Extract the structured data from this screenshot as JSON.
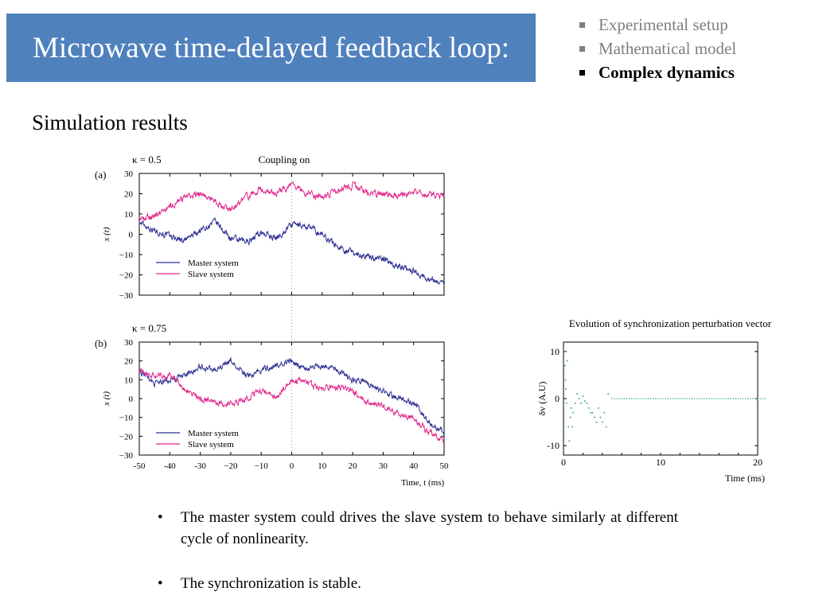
{
  "slide": {
    "title": "Microwave time-delayed feedback loop:",
    "subtitle": "Simulation results",
    "nav": [
      {
        "label": "Experimental setup",
        "active": false
      },
      {
        "label": "Mathematical model",
        "active": false
      },
      {
        "label": "Complex dynamics",
        "active": true
      }
    ],
    "bullets": [
      "The master system could drives the slave system to behave similarly at different cycle of nonlinearity.",
      "The synchronization is stable."
    ],
    "bullet_glyph": "•",
    "colors": {
      "title_bg": "#4f81bd",
      "master": "#2e3192",
      "slave": "#e0268a",
      "perturbation": "#3cb371"
    }
  },
  "chart_data": [
    {
      "id": "a",
      "type": "line",
      "panel_label": "(a)",
      "annotation_left": "κ = 0.5",
      "annotation_center": "Coupling on",
      "ylabel": "x (t)",
      "ylim": [
        -30,
        30
      ],
      "xlim": [
        -50,
        50
      ],
      "yticks": [
        "30",
        "20",
        "10",
        "0",
        "−10",
        "−20",
        "−30"
      ],
      "coupling_on_at": 0,
      "series": [
        {
          "name": "Master system",
          "color": "#2e3192",
          "x": [
            -50,
            -45,
            -40,
            -35,
            -30,
            -25,
            -20,
            -15,
            -10,
            -5,
            0,
            5,
            10,
            15,
            20,
            25,
            30,
            35,
            40,
            45,
            50
          ],
          "y": [
            6,
            2,
            -1,
            -3,
            2,
            6,
            -2,
            -4,
            1,
            -2,
            5,
            4,
            0,
            -6,
            -9,
            -11,
            -12,
            -16,
            -18,
            -22,
            -24
          ]
        },
        {
          "name": "Slave system",
          "color": "#e0268a",
          "x": [
            -50,
            -45,
            -40,
            -35,
            -30,
            -25,
            -20,
            -15,
            -10,
            -5,
            0,
            5,
            10,
            15,
            20,
            25,
            30,
            35,
            40,
            45,
            50
          ],
          "y": [
            7,
            9,
            14,
            18,
            20,
            16,
            12,
            18,
            22,
            20,
            24,
            20,
            18,
            22,
            24,
            20,
            20,
            19,
            21,
            19,
            20
          ]
        }
      ]
    },
    {
      "id": "b",
      "type": "line",
      "panel_label": "(b)",
      "annotation_left": "κ = 0.75",
      "ylabel": "x (t)",
      "xlabel": "Time, t (ms)",
      "ylim": [
        -30,
        30
      ],
      "xlim": [
        -50,
        50
      ],
      "yticks": [
        "30",
        "20",
        "10",
        "0",
        "−10",
        "−20",
        "−30"
      ],
      "xticks": [
        "-50",
        "-40",
        "-30",
        "−20",
        "−10",
        "0",
        "10",
        "20",
        "30",
        "40",
        "50"
      ],
      "series": [
        {
          "name": "Master system",
          "color": "#2e3192",
          "x": [
            -50,
            -45,
            -40,
            -35,
            -30,
            -25,
            -20,
            -15,
            -10,
            -5,
            0,
            5,
            10,
            15,
            20,
            25,
            30,
            35,
            40,
            45,
            50
          ],
          "y": [
            15,
            8,
            10,
            12,
            17,
            15,
            20,
            12,
            15,
            18,
            20,
            15,
            18,
            15,
            10,
            8,
            4,
            0,
            -2,
            -13,
            -18
          ]
        },
        {
          "name": "Slave system",
          "color": "#e0268a",
          "x": [
            -50,
            -45,
            -40,
            -35,
            -30,
            -25,
            -20,
            -15,
            -10,
            -5,
            0,
            5,
            10,
            15,
            20,
            25,
            30,
            35,
            40,
            45,
            50
          ],
          "y": [
            15,
            12,
            12,
            5,
            0,
            -2,
            -3,
            0,
            4,
            0,
            10,
            8,
            5,
            6,
            4,
            -2,
            -4,
            -8,
            -10,
            -18,
            -22
          ]
        }
      ]
    },
    {
      "id": "c",
      "type": "scatter",
      "title": "Evolution of synchronization perturbation vector",
      "ylabel": "δv (A.U)",
      "xlabel": "Time (ms)",
      "xlim": [
        0,
        20
      ],
      "ylim": [
        -12,
        12
      ],
      "xticks": [
        "0",
        "10",
        "20"
      ],
      "yticks": [
        "10",
        "0",
        "-10"
      ],
      "series": [
        {
          "color": "#3cb371",
          "x": [
            0.1,
            0.15,
            0.2,
            0.25,
            0.3,
            0.4,
            0.5,
            0.6,
            0.7,
            0.8,
            0.9,
            1.0,
            1.2,
            1.4,
            1.6,
            1.8,
            2.0,
            2.2,
            2.4,
            2.6,
            2.8,
            3.0,
            3.2,
            3.4,
            3.6,
            3.8,
            4.0,
            4.2,
            4.4,
            4.6,
            5,
            6,
            7,
            8,
            9,
            10,
            11,
            12,
            13,
            14,
            15,
            16,
            17,
            18,
            19,
            20
          ],
          "y": [
            10,
            7,
            4,
            2,
            -1,
            8,
            -6,
            -9,
            -4,
            -2,
            -6,
            -3,
            -1,
            1,
            0,
            -1,
            0.5,
            -0.5,
            -1,
            -2,
            -3,
            -3,
            -4,
            -5,
            -2,
            -4,
            -5,
            -3,
            -6,
            1,
            0,
            0,
            0,
            0,
            0,
            0,
            0,
            0,
            0,
            0,
            0,
            0,
            0,
            0,
            0,
            0
          ]
        }
      ]
    }
  ]
}
